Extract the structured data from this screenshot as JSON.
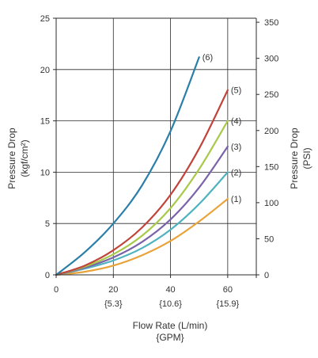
{
  "chart_data": {
    "type": "line",
    "xlabel": "Flow Rate (L/min)",
    "xlabel_secondary": "{GPM}",
    "ylabel": "Pressure Drop",
    "ylabel_unit": "(kgf/cm²)",
    "y2label": "Pressure Drop",
    "y2label_unit": "(PSI)",
    "xlim": [
      0,
      70
    ],
    "ylim": [
      0,
      25
    ],
    "y2lim": [
      0,
      355.6
    ],
    "grid": true,
    "x_ticks": [
      {
        "value": 0,
        "label": "0",
        "label_secondary": ""
      },
      {
        "value": 20,
        "label": "20",
        "label_secondary": "{5.3}"
      },
      {
        "value": 40,
        "label": "40",
        "label_secondary": "{10.6}"
      },
      {
        "value": 60,
        "label": "60",
        "label_secondary": "{15.9}"
      }
    ],
    "y_ticks": [
      {
        "value": 0,
        "label": "0"
      },
      {
        "value": 5,
        "label": "5"
      },
      {
        "value": 10,
        "label": "10"
      },
      {
        "value": 15,
        "label": "15"
      },
      {
        "value": 20,
        "label": "20"
      },
      {
        "value": 25,
        "label": "25"
      }
    ],
    "y2_ticks": [
      {
        "value": 0,
        "label": "0"
      },
      {
        "value": 50,
        "label": "50"
      },
      {
        "value": 100,
        "label": "100"
      },
      {
        "value": 150,
        "label": "150"
      },
      {
        "value": 200,
        "label": "200"
      },
      {
        "value": 250,
        "label": "250"
      },
      {
        "value": 300,
        "label": "300"
      },
      {
        "value": 350,
        "label": "350"
      }
    ],
    "series": [
      {
        "name": "(1)",
        "color": "#e8a33a",
        "x": [
          0,
          10,
          20,
          30,
          40,
          50,
          60
        ],
        "y": [
          0,
          0.3,
          0.9,
          1.9,
          3.3,
          5.2,
          7.4
        ]
      },
      {
        "name": "(2)",
        "color": "#4fb3bf",
        "x": [
          0,
          10,
          20,
          30,
          40,
          50,
          60
        ],
        "y": [
          0,
          0.6,
          1.4,
          2.6,
          4.4,
          6.9,
          10.0
        ]
      },
      {
        "name": "(3)",
        "color": "#7a63a8",
        "x": [
          0,
          10,
          20,
          30,
          40,
          50,
          60
        ],
        "y": [
          0,
          0.7,
          1.7,
          3.2,
          5.4,
          8.5,
          12.5
        ]
      },
      {
        "name": "(4)",
        "color": "#a8c94a",
        "x": [
          0,
          10,
          20,
          30,
          40,
          50,
          60
        ],
        "y": [
          0,
          0.8,
          2.0,
          3.8,
          6.5,
          10.3,
          15.0
        ]
      },
      {
        "name": "(5)",
        "color": "#c0443a",
        "x": [
          0,
          10,
          20,
          30,
          40,
          50,
          60
        ],
        "y": [
          0,
          0.9,
          2.4,
          4.6,
          7.8,
          12.3,
          18.0
        ]
      },
      {
        "name": "(6)",
        "color": "#2a7fa8",
        "x": [
          0,
          10,
          20,
          30,
          40,
          50
        ],
        "y": [
          0,
          2.2,
          5.0,
          8.7,
          14.0,
          21.2
        ]
      }
    ]
  }
}
